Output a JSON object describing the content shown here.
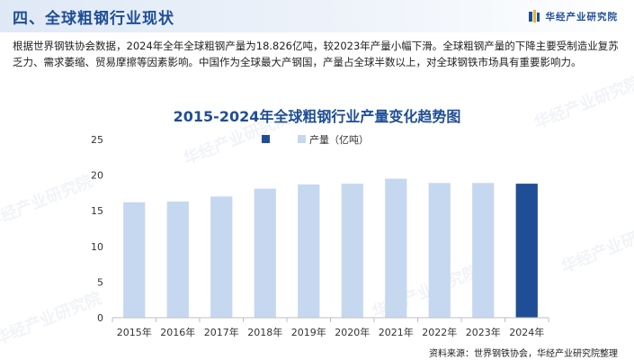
{
  "header": {
    "title": "四、全球粗钢行业现状",
    "brand": "华经产业研究院"
  },
  "intro": "根据世界钢铁协会数据，2024年全年全球粗钢产量为18.826亿吨，较2023年产量小幅下滑。全球粗钢产量的下降主要受制造业复苏乏力、需求萎缩、贸易摩擦等因素影响。中国作为全球最大产钢国，产量占全球半数以上，对全球钢铁市场具有重要影响力。",
  "watermark": "华经产业研究院",
  "source": "资料来源：世界钢铁协会，华经产业研究院整理",
  "colors": {
    "bar_light": "#c6d8f0",
    "bar_highlight": "#1f4e96",
    "axis": "#bfbfbf",
    "text": "#333333"
  },
  "chart_data": {
    "type": "bar",
    "title": "2015-2024年全球粗钢行业产量变化趋势图",
    "categories": [
      "2015年",
      "2016年",
      "2017年",
      "2018年",
      "2019年",
      "2020年",
      "2021年",
      "2022年",
      "2023年",
      "2024年"
    ],
    "series": [
      {
        "name": "产量（亿吨）",
        "values": [
          16.2,
          16.3,
          17.0,
          18.1,
          18.7,
          18.8,
          19.5,
          18.9,
          18.9,
          18.8
        ]
      }
    ],
    "highlight_index": 9,
    "ylim": [
      0,
      25
    ],
    "yticks": [
      0,
      5,
      10,
      15,
      20,
      25
    ],
    "grid": false,
    "legend": "top-right"
  }
}
